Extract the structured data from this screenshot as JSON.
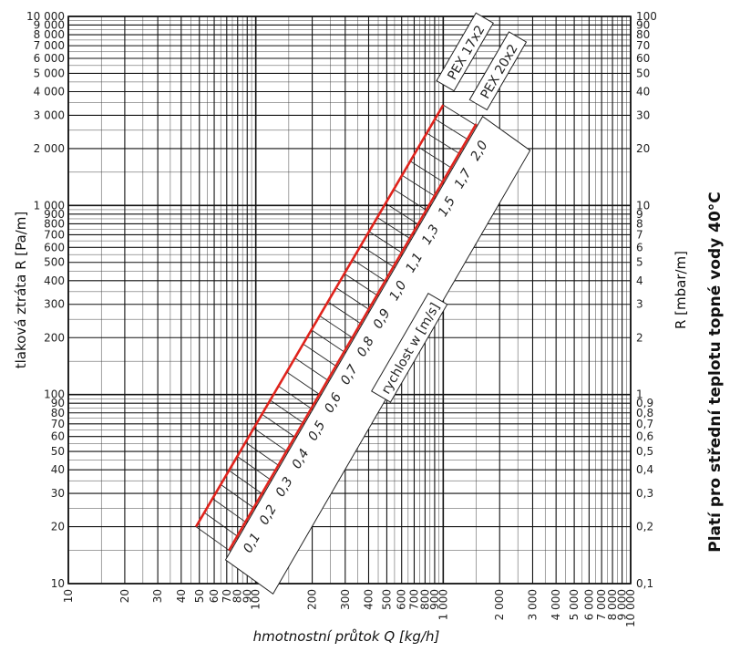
{
  "chart_data": {
    "type": "line",
    "xscale": "log",
    "yscale": "log",
    "xlim": [
      10,
      10000
    ],
    "ylim": [
      10,
      10000
    ],
    "grid": true,
    "xlabel": "hmotnostní průtok Q [kg/h]",
    "ylabel": "tlaková ztráta R [Pa/m]",
    "ylabel_right": "R [mbar/m]",
    "note": "Platí pro střední teplotu topné vody 40°C",
    "velocity_label": "rychlost w [m/s]",
    "x_tick_labels": [
      "10",
      "20",
      "30",
      "40",
      "50",
      "60",
      "70",
      "80",
      "90",
      "100",
      "200",
      "300",
      "400",
      "500",
      "600",
      "700",
      "800",
      "900",
      "1 000",
      "2 000",
      "3 000",
      "4 000",
      "5 000",
      "6 000",
      "7 000",
      "8 000",
      "9 000",
      "10 000"
    ],
    "y_left_tick_labels": [
      "10",
      "20",
      "30",
      "40",
      "50",
      "60",
      "70",
      "80",
      "90",
      "100",
      "200",
      "300",
      "400",
      "500",
      "600",
      "700",
      "800",
      "900",
      "1 000",
      "2 000",
      "3 000",
      "4 000",
      "5 000",
      "6 000",
      "7 000",
      "8 000",
      "9 000",
      "10 000"
    ],
    "y_right_tick_labels": [
      "0,1",
      "0,2",
      "0,3",
      "0,4",
      "0,5",
      "0,6",
      "0,7",
      "0,8",
      "0,9",
      "1",
      "2",
      "3",
      "4",
      "5",
      "6",
      "7",
      "8",
      "9",
      "10",
      "20",
      "30",
      "40",
      "50",
      "60",
      "70",
      "80",
      "90",
      "100"
    ],
    "series": [
      {
        "name": "PEX 17x2",
        "color": "#e0231c",
        "x": [
          48,
          1000
        ],
        "y": [
          20,
          3400
        ]
      },
      {
        "name": "PEX 20x2",
        "color": "#e0231c",
        "x": [
          72,
          1500
        ],
        "y": [
          15,
          2700
        ]
      }
    ],
    "velocity_values": [
      "0,1",
      "0,2",
      "0,3",
      "0,4",
      "0,5",
      "0,6",
      "0,7",
      "0,8",
      "0,9",
      "1,0",
      "1,1",
      "1,3",
      "1,5",
      "1,7",
      "2,0"
    ]
  }
}
